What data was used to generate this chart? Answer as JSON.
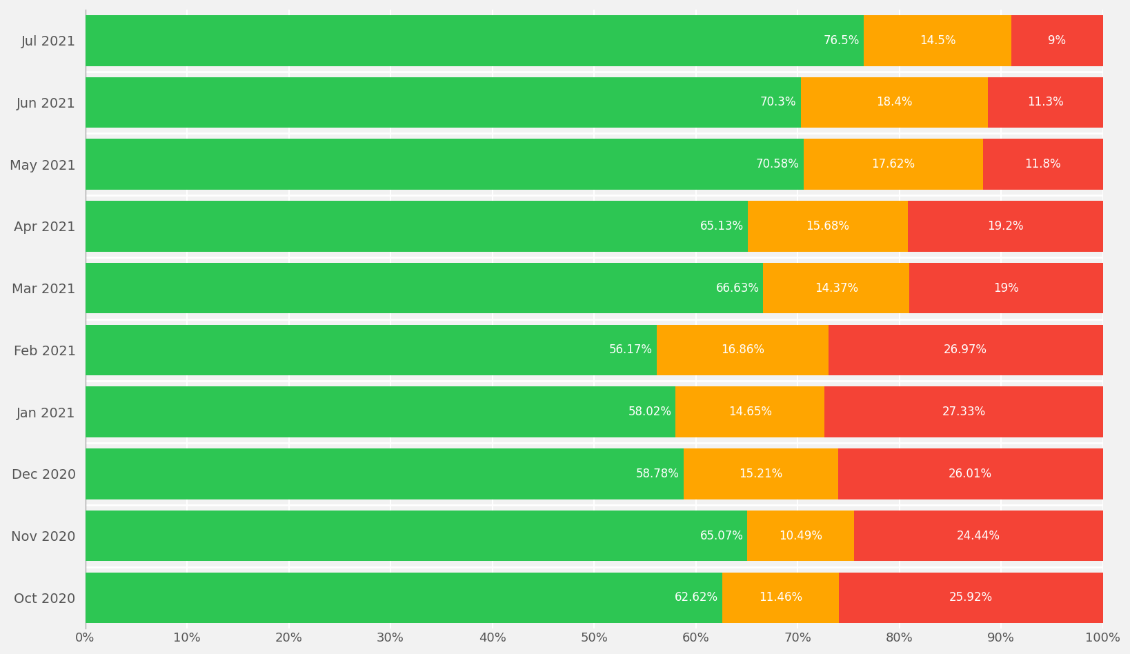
{
  "months": [
    "Oct 2020",
    "Nov 2020",
    "Dec 2020",
    "Jan 2021",
    "Feb 2021",
    "Mar 2021",
    "Apr 2021",
    "May 2021",
    "Jun 2021",
    "Jul 2021"
  ],
  "good": [
    62.62,
    65.07,
    58.78,
    58.02,
    56.17,
    66.63,
    65.13,
    70.58,
    70.3,
    76.5
  ],
  "needs_improvement": [
    11.46,
    10.49,
    15.21,
    14.65,
    16.86,
    14.37,
    15.68,
    17.62,
    18.4,
    14.5
  ],
  "poor": [
    25.92,
    24.44,
    26.01,
    27.33,
    26.97,
    19.0,
    19.2,
    11.8,
    11.3,
    9.0
  ],
  "good_labels": [
    "62.62%",
    "65.07%",
    "58.78%",
    "58.02%",
    "56.17%",
    "66.63%",
    "65.13%",
    "70.58%",
    "70.3%",
    "76.5%"
  ],
  "needs_improvement_labels": [
    "11.46%",
    "10.49%",
    "15.21%",
    "14.65%",
    "16.86%",
    "14.37%",
    "15.68%",
    "17.62%",
    "18.4%",
    "14.5%"
  ],
  "poor_labels": [
    "25.92%",
    "24.44%",
    "26.01%",
    "27.33%",
    "26.97%",
    "19%",
    "19.2%",
    "11.8%",
    "11.3%",
    "9%"
  ],
  "color_good": "#2DC653",
  "color_needs_improvement": "#FFA500",
  "color_poor": "#F44336",
  "background_color": "#F2F2F2",
  "bar_height": 0.82,
  "xlim": [
    0,
    100
  ],
  "xtick_labels": [
    "0%",
    "10%",
    "20%",
    "30%",
    "40%",
    "50%",
    "60%",
    "70%",
    "80%",
    "90%",
    "100%"
  ],
  "xtick_values": [
    0,
    10,
    20,
    30,
    40,
    50,
    60,
    70,
    80,
    90,
    100
  ],
  "label_fontsize": 12,
  "tick_fontsize": 13,
  "ytick_fontsize": 14
}
